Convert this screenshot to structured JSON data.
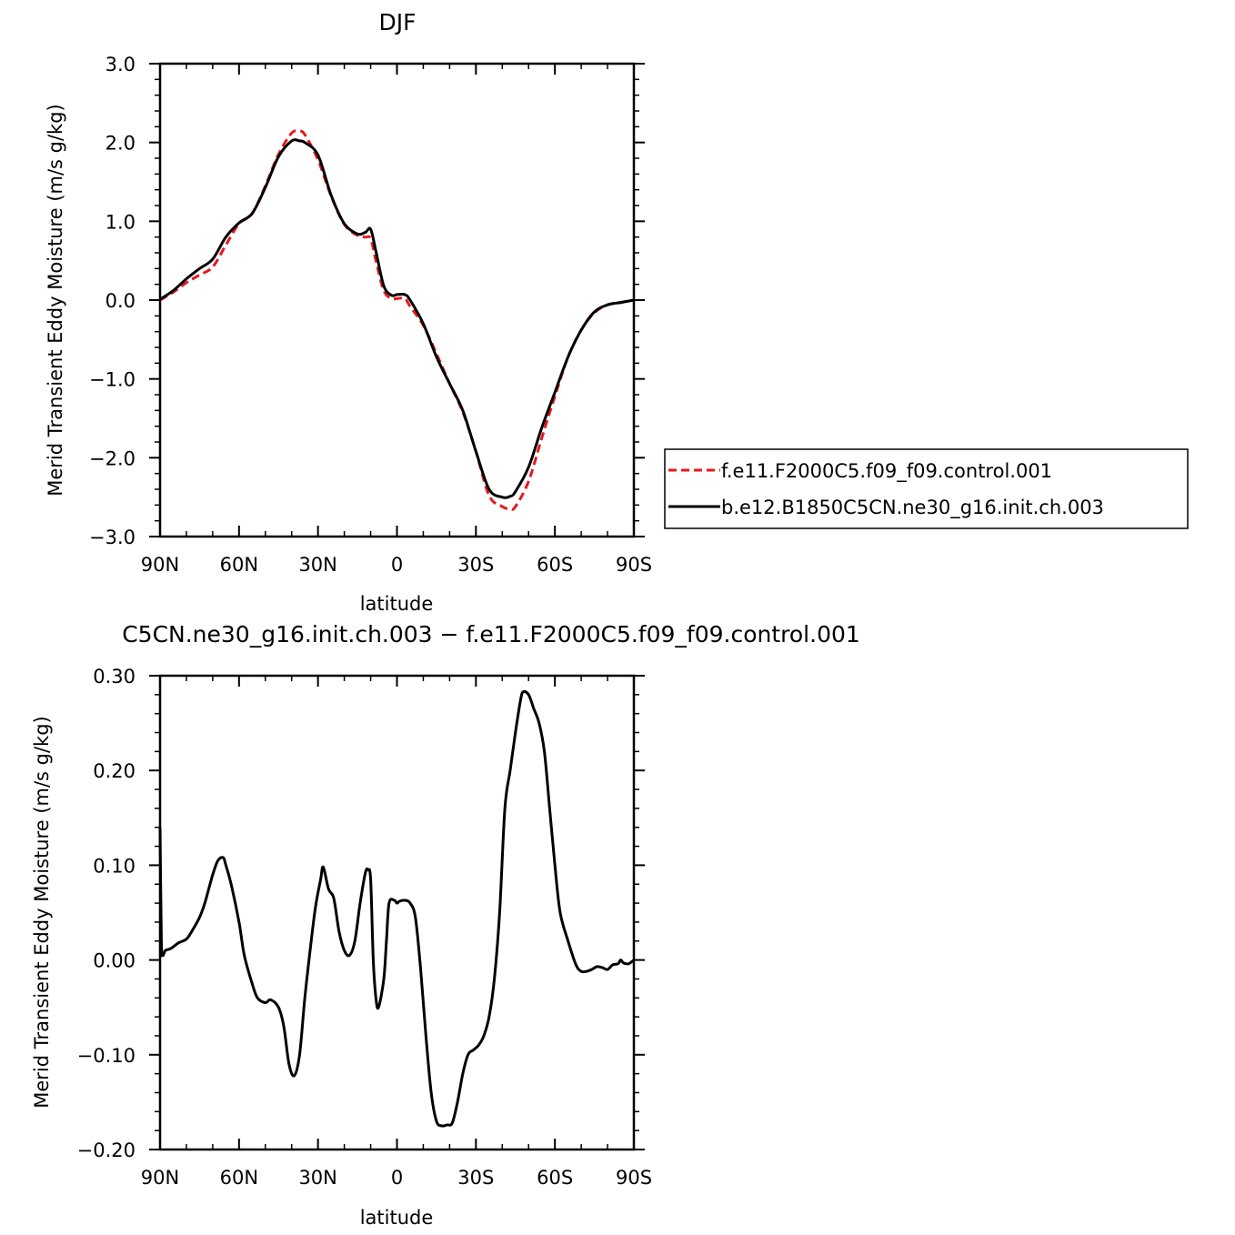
{
  "chart_data": [
    {
      "type": "line",
      "title": "DJF",
      "xlabel": "latitude",
      "ylabel": "Merid Transient Eddy Moisture (m/s g/kg)",
      "xlim": [
        -90,
        90
      ],
      "ylim": [
        -3.0,
        3.0
      ],
      "x_ticks": [
        -90,
        -60,
        -30,
        0,
        30,
        60,
        90
      ],
      "x_tick_labels": [
        "90N",
        "60N",
        "30N",
        "0",
        "30S",
        "60S",
        "90S"
      ],
      "y_ticks": [
        -3.0,
        -2.0,
        -1.0,
        0.0,
        1.0,
        2.0,
        3.0
      ],
      "y_tick_labels": [
        "−3.0",
        "−2.0",
        "−1.0",
        "0.0",
        "1.0",
        "2.0",
        "3.0"
      ],
      "grid": false,
      "legend": "outside-right",
      "series": [
        {
          "name": "f.e11.F2000C5.f09_f09.control.001",
          "color": "#e8181c",
          "dash": "dashed",
          "x": [
            -90,
            -85,
            -80,
            -75,
            -70,
            -65,
            -60,
            -55,
            -50,
            -45,
            -40,
            -37,
            -35,
            -30,
            -25,
            -20,
            -15,
            -12,
            -10,
            -8,
            -5,
            -2,
            0,
            3,
            5,
            10,
            15,
            20,
            25,
            30,
            35,
            40,
            43,
            45,
            50,
            55,
            60,
            65,
            70,
            75,
            80,
            85,
            90
          ],
          "y": [
            0.0,
            0.1,
            0.22,
            0.32,
            0.42,
            0.7,
            0.97,
            1.1,
            1.45,
            1.85,
            2.12,
            2.14,
            2.1,
            1.78,
            1.32,
            0.96,
            0.82,
            0.8,
            0.78,
            0.5,
            0.12,
            0.02,
            0.02,
            0.02,
            -0.08,
            -0.32,
            -0.68,
            -1.06,
            -1.42,
            -1.92,
            -2.48,
            -2.62,
            -2.65,
            -2.62,
            -2.3,
            -1.75,
            -1.22,
            -0.72,
            -0.38,
            -0.16,
            -0.06,
            -0.03,
            0.0
          ]
        },
        {
          "name": "b.e12.B1850C5CN.ne30_g16.init.ch.003",
          "color": "#000000",
          "dash": "solid",
          "x": [
            -90,
            -85,
            -80,
            -75,
            -70,
            -65,
            -60,
            -55,
            -50,
            -45,
            -40,
            -37,
            -35,
            -30,
            -25,
            -20,
            -15,
            -12,
            -10,
            -8,
            -5,
            -2,
            0,
            3,
            5,
            10,
            15,
            20,
            25,
            30,
            35,
            40,
            43,
            45,
            50,
            55,
            60,
            65,
            70,
            75,
            80,
            85,
            90
          ],
          "y": [
            0.01,
            0.12,
            0.27,
            0.4,
            0.52,
            0.8,
            0.98,
            1.1,
            1.43,
            1.82,
            2.02,
            2.02,
            2.0,
            1.84,
            1.33,
            0.97,
            0.84,
            0.86,
            0.9,
            0.62,
            0.18,
            0.06,
            0.07,
            0.07,
            0.0,
            -0.3,
            -0.72,
            -1.06,
            -1.4,
            -1.92,
            -2.4,
            -2.5,
            -2.49,
            -2.43,
            -2.12,
            -1.62,
            -1.17,
            -0.72,
            -0.38,
            -0.15,
            -0.06,
            -0.03,
            0.0
          ]
        }
      ]
    },
    {
      "type": "line",
      "title": "C5CN.ne30_g16.init.ch.003 − f.e11.F2000C5.f09_f09.control.001",
      "xlabel": "latitude",
      "ylabel": "Merid Transient Eddy Moisture (m/s g/kg)",
      "xlim": [
        -90,
        90
      ],
      "ylim": [
        -0.2,
        0.3
      ],
      "x_ticks": [
        -90,
        -60,
        -30,
        0,
        30,
        60,
        90
      ],
      "x_tick_labels": [
        "90N",
        "60N",
        "30N",
        "0",
        "30S",
        "60S",
        "90S"
      ],
      "y_ticks": [
        -0.2,
        -0.1,
        0.0,
        0.1,
        0.2,
        0.3
      ],
      "y_tick_labels": [
        "−0.20",
        "−0.10",
        "0.00",
        "0.10",
        "0.20",
        "0.30"
      ],
      "grid": false,
      "series": [
        {
          "color": "#000000",
          "dash": "solid",
          "x": [
            -90,
            -89.5,
            -89,
            -88,
            -86,
            -83,
            -80,
            -78,
            -75,
            -73,
            -70,
            -68,
            -66,
            -65,
            -63,
            -60,
            -58,
            -55,
            -53,
            -50,
            -48,
            -45,
            -43,
            -41,
            -39,
            -37,
            -35,
            -33,
            -31,
            -29,
            -28,
            -26,
            -24,
            -22,
            -20,
            -18,
            -16,
            -14,
            -12,
            -11,
            -10,
            -9,
            -8,
            -7,
            -5,
            -4,
            -3,
            -1,
            0,
            1,
            3,
            5,
            7,
            9,
            11,
            13,
            15,
            17,
            19,
            21,
            23,
            25,
            27,
            29,
            31,
            33,
            35,
            37,
            39,
            41,
            43,
            45,
            47,
            48,
            50,
            52,
            54,
            56,
            58,
            60,
            62,
            65,
            68,
            70,
            72,
            74,
            76,
            78,
            80,
            82,
            84,
            85,
            86,
            88,
            90
          ],
          "y": [
            0.14,
            0.02,
            0.005,
            0.01,
            0.012,
            0.018,
            0.022,
            0.03,
            0.045,
            0.06,
            0.09,
            0.105,
            0.108,
            0.1,
            0.08,
            0.04,
            0.005,
            -0.025,
            -0.04,
            -0.045,
            -0.042,
            -0.05,
            -0.07,
            -0.11,
            -0.122,
            -0.1,
            -0.04,
            0.01,
            0.055,
            0.085,
            0.098,
            0.075,
            0.065,
            0.03,
            0.01,
            0.005,
            0.02,
            0.06,
            0.092,
            0.095,
            0.085,
            0.0,
            -0.04,
            -0.05,
            -0.02,
            0.02,
            0.06,
            0.063,
            0.06,
            0.062,
            0.063,
            0.06,
            0.045,
            -0.01,
            -0.08,
            -0.14,
            -0.17,
            -0.175,
            -0.174,
            -0.172,
            -0.15,
            -0.12,
            -0.1,
            -0.095,
            -0.09,
            -0.08,
            -0.06,
            -0.02,
            0.05,
            0.16,
            0.2,
            0.24,
            0.275,
            0.283,
            0.28,
            0.265,
            0.25,
            0.22,
            0.16,
            0.1,
            0.05,
            0.02,
            -0.005,
            -0.012,
            -0.012,
            -0.01,
            -0.007,
            -0.008,
            -0.01,
            -0.005,
            -0.004,
            0.0,
            -0.003,
            -0.004,
            0.0
          ]
        }
      ]
    }
  ]
}
